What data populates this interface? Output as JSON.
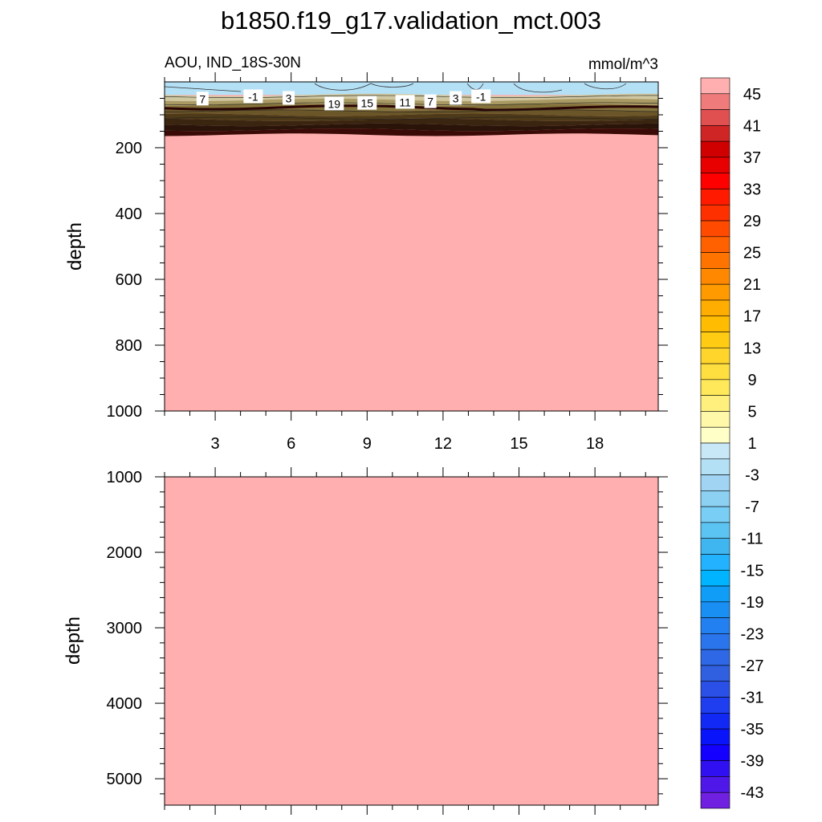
{
  "figure": {
    "title": "b1850.f19_g17.validation_mct.003"
  },
  "chart_data": [
    {
      "type": "heatmap",
      "panel": "upper",
      "subtitle_left": "AOU, IND_18S-30N",
      "subtitle_right": "mmol/m^3",
      "xlabel": "",
      "ylabel": "depth",
      "xlim": [
        1,
        20.5
      ],
      "ylim": [
        0,
        1000
      ],
      "y_reversed": true,
      "x_ticks": [
        3,
        6,
        9,
        12,
        15,
        18
      ],
      "y_ticks": [
        200,
        400,
        600,
        800,
        1000
      ],
      "x_minor_ticks": [
        1,
        2,
        4,
        5,
        7,
        8,
        10,
        11,
        13,
        14,
        16,
        17,
        19,
        20
      ],
      "y_minor_ticks": [
        50,
        100,
        150,
        250,
        300,
        350,
        450,
        500,
        550,
        650,
        700,
        750,
        850,
        900,
        950
      ],
      "fill_below_thermocline": ">45",
      "mixed_layer_value_range": [
        -3,
        -1
      ],
      "thermocline_depth_top": 30,
      "thermocline_depth_bottom": 85,
      "contour_labels": [
        {
          "label": "7",
          "x": 2.5,
          "depth": 52
        },
        {
          "label": "-1",
          "x": 4.5,
          "depth": 45
        },
        {
          "label": "3",
          "x": 5.9,
          "depth": 50
        },
        {
          "label": "19",
          "x": 7.7,
          "depth": 67
        },
        {
          "label": "15",
          "x": 9.0,
          "depth": 65
        },
        {
          "label": "11",
          "x": 10.5,
          "depth": 62
        },
        {
          "label": "7",
          "x": 11.5,
          "depth": 60
        },
        {
          "label": "3",
          "x": 12.5,
          "depth": 50
        },
        {
          "label": "-1",
          "x": 13.5,
          "depth": 45
        }
      ]
    },
    {
      "type": "heatmap",
      "panel": "lower",
      "xlabel": "",
      "ylabel": "depth",
      "xlim": [
        1,
        20.5
      ],
      "ylim": [
        1000,
        5350
      ],
      "y_reversed": true,
      "y_ticks": [
        1000,
        2000,
        3000,
        4000,
        5000
      ],
      "y_minor_ticks": [
        1200,
        1400,
        1600,
        1800,
        2200,
        2400,
        2600,
        2800,
        3200,
        3400,
        3600,
        3800,
        4200,
        4400,
        4600,
        4800,
        5200
      ],
      "x_ticks": [
        3,
        6,
        9,
        12,
        15,
        18
      ],
      "fill": ">45"
    }
  ],
  "colorbar": {
    "labels": [
      "45",
      "41",
      "37",
      "33",
      "29",
      "25",
      "21",
      "17",
      "13",
      "9",
      "5",
      "1",
      "-3",
      "-7",
      "-11",
      "-15",
      "-19",
      "-23",
      "-27",
      "-31",
      "-35",
      "-39",
      "-43"
    ],
    "colors": [
      "#ffafaf",
      "#f07b7b",
      "#e05050",
      "#d02525",
      "#d10000",
      "#e80000",
      "#ff0000",
      "#ff1a00",
      "#ff3000",
      "#ff4a00",
      "#ff6000",
      "#ff7400",
      "#ff8800",
      "#ff9a00",
      "#ffad00",
      "#ffbc00",
      "#ffcb13",
      "#ffd52b",
      "#ffdf40",
      "#ffe85a",
      "#fff07d",
      "#fff8a8",
      "#ffffc8",
      "#c8e8f8",
      "#b4e0f6",
      "#a0d4f2",
      "#8cd0f2",
      "#78cef5",
      "#5cc4f3",
      "#40b6f0",
      "#22b2ff",
      "#00b4ff",
      "#0f9df7",
      "#1a8ff3",
      "#2280f0",
      "#2a74ec",
      "#2e68e6",
      "#3060e0",
      "#2a50e8",
      "#1e3ef0",
      "#1228f5",
      "#0a14fa",
      "#1400ff",
      "#3010f0",
      "#5018e8",
      "#7020e0"
    ]
  }
}
